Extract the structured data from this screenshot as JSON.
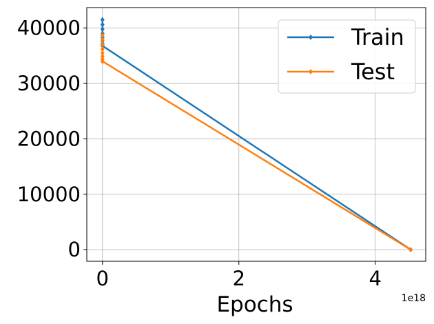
{
  "chart_data": {
    "type": "line",
    "xlabel": "Epochs",
    "ylabel": "",
    "x_offset_text": "1e18",
    "xlim": [
      -2.3e+17,
      4.74e+18
    ],
    "ylim": [
      -2100,
      43700
    ],
    "xticks": [
      0,
      2e+18,
      4e+18
    ],
    "xtick_labels": [
      "0",
      "2",
      "4"
    ],
    "yticks": [
      0,
      10000,
      20000,
      30000,
      40000
    ],
    "ytick_labels": [
      "0",
      "10000",
      "20000",
      "30000",
      "40000"
    ],
    "grid": true,
    "legend_position": "top-right",
    "series": [
      {
        "name": "Train",
        "color": "#1f77b4",
        "x": [
          0,
          0,
          0,
          0,
          0,
          0,
          0,
          0,
          4.52e+18
        ],
        "y": [
          41500,
          40600,
          39800,
          39000,
          38300,
          37700,
          37200,
          36800,
          0
        ]
      },
      {
        "name": "Test",
        "color": "#ff7f0e",
        "x": [
          0,
          0,
          0,
          0,
          0,
          0,
          0,
          0,
          4.52e+18
        ],
        "y": [
          38700,
          37900,
          37000,
          36200,
          35500,
          34900,
          34400,
          34000,
          0
        ]
      }
    ]
  }
}
